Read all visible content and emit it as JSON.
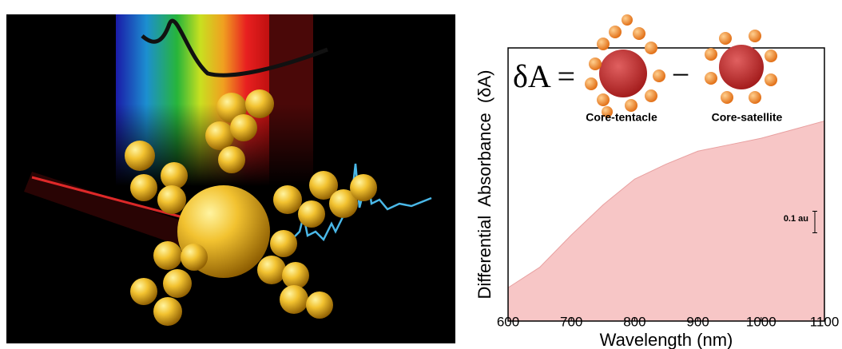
{
  "chart_data": {
    "type": "area",
    "equation_label": "δA =",
    "minus_sign": "−",
    "inset_labels": [
      "Core-tentacle",
      "Core-satellite"
    ],
    "x_label": "Wavelength (nm)",
    "y_label": "Differential  Absorbance  (δA)",
    "x": [
      600,
      650,
      700,
      750,
      800,
      850,
      900,
      950,
      1000,
      1050,
      1100
    ],
    "values": [
      0.155,
      0.25,
      0.4,
      0.54,
      0.66,
      0.73,
      0.79,
      0.82,
      0.85,
      0.89,
      0.93
    ],
    "color": "#f7c6c6",
    "xlim": [
      600,
      1100
    ],
    "xticks": [
      600,
      700,
      800,
      900,
      1000,
      1100
    ],
    "ylim": [
      0,
      1.27
    ],
    "scale_bar": {
      "value": 0.1,
      "label": "0.1 au"
    }
  }
}
